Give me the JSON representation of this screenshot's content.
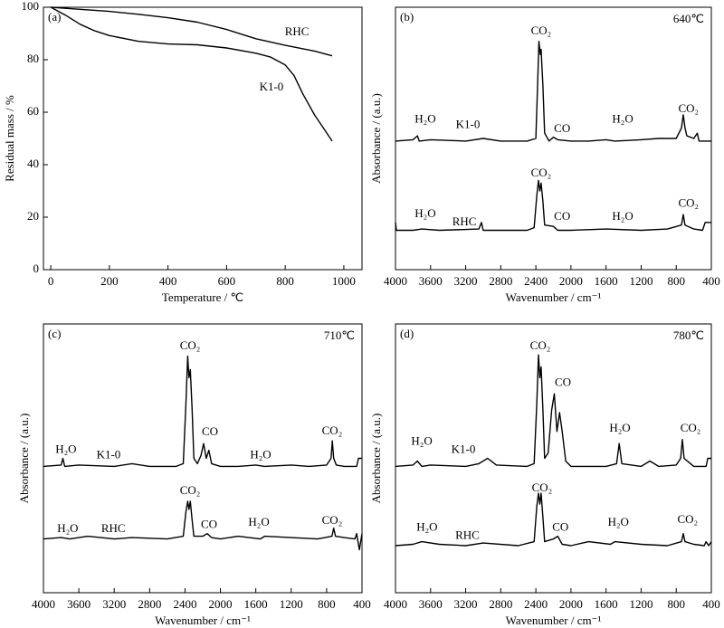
{
  "chart_data": [
    {
      "type": "line",
      "panel_label": "(a)",
      "x_label": "Temperature / ℃",
      "y_label": "Residual mass / %",
      "xlim": [
        -25,
        1062
      ],
      "xticks": [
        0,
        200,
        400,
        600,
        800,
        1000
      ],
      "ylim": [
        0,
        100
      ],
      "yticks": [
        0,
        20,
        40,
        60,
        80,
        100
      ],
      "series": [
        {
          "name": "RHC",
          "color": "#000000",
          "label_at": [
            840,
            90.3
          ],
          "x": [
            0,
            100,
            200,
            300,
            400,
            500,
            600,
            700,
            800,
            900,
            960
          ],
          "values": [
            100,
            99.2,
            98.4,
            97.3,
            96,
            94.3,
            91.5,
            88,
            85.5,
            83.3,
            81.5
          ]
        },
        {
          "name": "K1-0",
          "color": "#000000",
          "label_at": [
            753,
            69.3
          ],
          "x": [
            0,
            50,
            100,
            150,
            200,
            300,
            400,
            500,
            600,
            700,
            750,
            800,
            830,
            860,
            900,
            930,
            960
          ],
          "values": [
            100,
            97,
            93.5,
            91,
            89.2,
            87,
            86,
            85.7,
            84.5,
            82.5,
            81,
            78,
            74,
            67,
            59,
            54,
            49
          ]
        }
      ],
      "annotations": []
    },
    {
      "type": "line",
      "panel_label": "(b)",
      "temperature": "640℃",
      "x_label": "Wavenumber / cm⁻¹",
      "y_label": "Absorbance / (a.u.)",
      "xlim": [
        4000,
        400
      ],
      "xticks": [
        4000,
        3600,
        3200,
        2800,
        2400,
        2000,
        1600,
        1200,
        800,
        400
      ],
      "ylim": [
        0,
        100
      ],
      "series": [
        {
          "name": "K1-0",
          "color": "#000000",
          "label_at": [
            3175,
            55
          ],
          "x": [
            4000,
            3800,
            3750,
            3730,
            3600,
            3200,
            3000,
            2800,
            2500,
            2400,
            2380,
            2365,
            2350,
            2340,
            2320,
            2300,
            2250,
            2200,
            2150,
            2000,
            1800,
            1600,
            1500,
            1200,
            1000,
            800,
            740,
            720,
            700,
            680,
            600,
            560,
            540,
            400
          ],
          "values": [
            49,
            49.5,
            51,
            49,
            49.5,
            49,
            50,
            49,
            49,
            50,
            70,
            87,
            82,
            84,
            70,
            52,
            49,
            50.5,
            49.5,
            49,
            49,
            49.5,
            49,
            49.5,
            50,
            50,
            54,
            59,
            54,
            51,
            50,
            52,
            49,
            49
          ]
        },
        {
          "name": "RHC",
          "color": "#000000",
          "label_at": [
            3215,
            18
          ],
          "x": [
            4000,
            3990,
            3800,
            3700,
            3500,
            3050,
            3020,
            3000,
            2500,
            2420,
            2390,
            2370,
            2355,
            2340,
            2320,
            2300,
            2200,
            2150,
            2000,
            1600,
            1200,
            900,
            740,
            720,
            700,
            600,
            500,
            470,
            400
          ],
          "values": [
            18,
            15,
            15,
            15.5,
            15,
            15.5,
            18,
            15,
            15,
            16,
            28,
            34,
            30,
            33,
            26,
            17,
            16.5,
            15,
            15,
            15.5,
            15,
            15.5,
            17,
            21,
            17,
            15.5,
            15,
            18,
            18
          ]
        }
      ],
      "annotations": [
        {
          "text": "H₂O",
          "x": 3660,
          "y": 57
        },
        {
          "text": "CO₂",
          "x": 2340,
          "y": 90.7
        },
        {
          "text": "CO",
          "x": 2100,
          "y": 53.4
        },
        {
          "text": "H₂O",
          "x": 1410,
          "y": 57
        },
        {
          "text": "CO₂",
          "x": 660,
          "y": 61
        },
        {
          "text": "H₂O",
          "x": 3660,
          "y": 21
        },
        {
          "text": "CO₂",
          "x": 2340,
          "y": 36.5
        },
        {
          "text": "CO",
          "x": 2100,
          "y": 20
        },
        {
          "text": "H₂O",
          "x": 1410,
          "y": 20
        },
        {
          "text": "CO₂",
          "x": 660,
          "y": 25
        }
      ]
    },
    {
      "type": "line",
      "panel_label": "(c)",
      "temperature": "710℃",
      "x_label": "Wavenumber / cm⁻¹",
      "y_label": "Absorbance / (a.u.)",
      "xlim": [
        4000,
        400
      ],
      "xticks": [
        4000,
        3600,
        3200,
        2800,
        2400,
        2000,
        1600,
        1200,
        800,
        400
      ],
      "ylim": [
        0,
        100
      ],
      "series": [
        {
          "name": "K1-0",
          "color": "#000000",
          "label_at": [
            3264,
            51
          ],
          "x": [
            4000,
            3800,
            3780,
            3760,
            3600,
            3200,
            3000,
            2800,
            2500,
            2420,
            2390,
            2370,
            2355,
            2340,
            2320,
            2300,
            2260,
            2220,
            2190,
            2160,
            2130,
            2100,
            2000,
            1800,
            1600,
            1500,
            1200,
            1000,
            800,
            750,
            735,
            720,
            690,
            600,
            460,
            440,
            400
          ],
          "values": [
            47,
            47.5,
            50,
            47,
            47.5,
            47,
            48,
            47,
            47,
            48,
            70,
            88,
            80,
            83,
            68,
            50,
            48,
            51,
            55.5,
            50,
            53,
            48,
            47,
            47,
            47.5,
            47,
            47.5,
            47,
            47.5,
            50,
            56.5,
            50,
            47.5,
            47,
            47,
            50,
            50
          ]
        },
        {
          "name": "RHC",
          "color": "#000000",
          "label_at": [
            3210,
            23.6
          ],
          "x": [
            4000,
            3800,
            3700,
            3500,
            3200,
            3000,
            2600,
            2420,
            2390,
            2370,
            2355,
            2340,
            2320,
            2300,
            2200,
            2150,
            2100,
            2000,
            1800,
            1550,
            1500,
            1200,
            900,
            740,
            720,
            700,
            600,
            480,
            460,
            430,
            400
          ],
          "values": [
            20,
            20.5,
            20,
            21,
            20,
            20.5,
            20,
            21,
            30,
            34,
            31,
            34,
            27,
            21,
            21,
            22,
            20.5,
            20,
            21,
            20,
            21,
            20.5,
            20,
            21,
            24,
            21,
            20.5,
            20,
            22,
            16,
            22
          ]
        }
      ],
      "annotations": [
        {
          "text": "H₂O",
          "x": 3745,
          "y": 53
        },
        {
          "text": "CO₂",
          "x": 2343,
          "y": 91.6
        },
        {
          "text": "CO",
          "x": 2118,
          "y": 59.6
        },
        {
          "text": "H₂O",
          "x": 1545,
          "y": 51
        },
        {
          "text": "CO₂",
          "x": 738,
          "y": 60
        },
        {
          "text": "H₂O",
          "x": 3725,
          "y": 23.6
        },
        {
          "text": "CO₂",
          "x": 2343,
          "y": 37.7
        },
        {
          "text": "CO",
          "x": 2128,
          "y": 25
        },
        {
          "text": "H₂O",
          "x": 1565,
          "y": 26
        },
        {
          "text": "CO₂",
          "x": 738,
          "y": 26.6
        }
      ]
    },
    {
      "type": "line",
      "panel_label": "(d)",
      "temperature": "780℃",
      "x_label": "Wavenumber / cm⁻¹",
      "y_label": "Absorbance / (a.u.)",
      "xlim": [
        4000,
        400
      ],
      "xticks": [
        4000,
        3600,
        3200,
        2800,
        2400,
        2000,
        1600,
        1200,
        800,
        400
      ],
      "ylim": [
        0,
        100
      ],
      "series": [
        {
          "name": "K1-0",
          "color": "#000000",
          "label_at": [
            3226,
            53
          ],
          "x": [
            4000,
            3800,
            3750,
            3700,
            3600,
            3200,
            3050,
            2950,
            2850,
            2500,
            2420,
            2390,
            2370,
            2355,
            2340,
            2320,
            2300,
            2260,
            2220,
            2190,
            2160,
            2130,
            2100,
            2060,
            2000,
            1800,
            1600,
            1480,
            1450,
            1420,
            1200,
            1100,
            1000,
            800,
            750,
            730,
            710,
            600,
            460,
            440,
            400
          ],
          "values": [
            47,
            47.5,
            49,
            47,
            47.5,
            47,
            48,
            50,
            47.5,
            47,
            48,
            70,
            88.5,
            80,
            84,
            68,
            50,
            52,
            68,
            74,
            60,
            67,
            60,
            49,
            47,
            47,
            47,
            48,
            55.5,
            48,
            47,
            49,
            47,
            47.5,
            50,
            57,
            50,
            47,
            47,
            50,
            50
          ]
        },
        {
          "name": "RHC",
          "color": "#000000",
          "label_at": [
            3180,
            21
          ],
          "x": [
            4000,
            3800,
            3700,
            3500,
            3200,
            3000,
            2600,
            2420,
            2390,
            2370,
            2355,
            2340,
            2320,
            2300,
            2200,
            2150,
            2100,
            2000,
            1800,
            1550,
            1500,
            1200,
            900,
            740,
            720,
            700,
            600,
            480,
            460,
            430,
            400
          ],
          "values": [
            17.5,
            18,
            19,
            18,
            17.5,
            18.5,
            17.5,
            19,
            32,
            37,
            33,
            37,
            28,
            19,
            20,
            21,
            18,
            17.5,
            19,
            18,
            19,
            18,
            17.5,
            19,
            22,
            19,
            18,
            17.5,
            19,
            17.5,
            19
          ]
        }
      ],
      "annotations": [
        {
          "text": "H₂O",
          "x": 3700,
          "y": 56
        },
        {
          "text": "CO₂",
          "x": 2350,
          "y": 91.6
        },
        {
          "text": "CO",
          "x": 2092,
          "y": 78
        },
        {
          "text": "H₂O",
          "x": 1442,
          "y": 61
        },
        {
          "text": "CO₂",
          "x": 637,
          "y": 61
        },
        {
          "text": "H₂O",
          "x": 3640,
          "y": 24
        },
        {
          "text": "CO₂",
          "x": 2330,
          "y": 38.7
        },
        {
          "text": "CO",
          "x": 2120,
          "y": 24
        },
        {
          "text": "H₂O",
          "x": 1460,
          "y": 26
        },
        {
          "text": "CO₂",
          "x": 670,
          "y": 27
        }
      ]
    }
  ]
}
